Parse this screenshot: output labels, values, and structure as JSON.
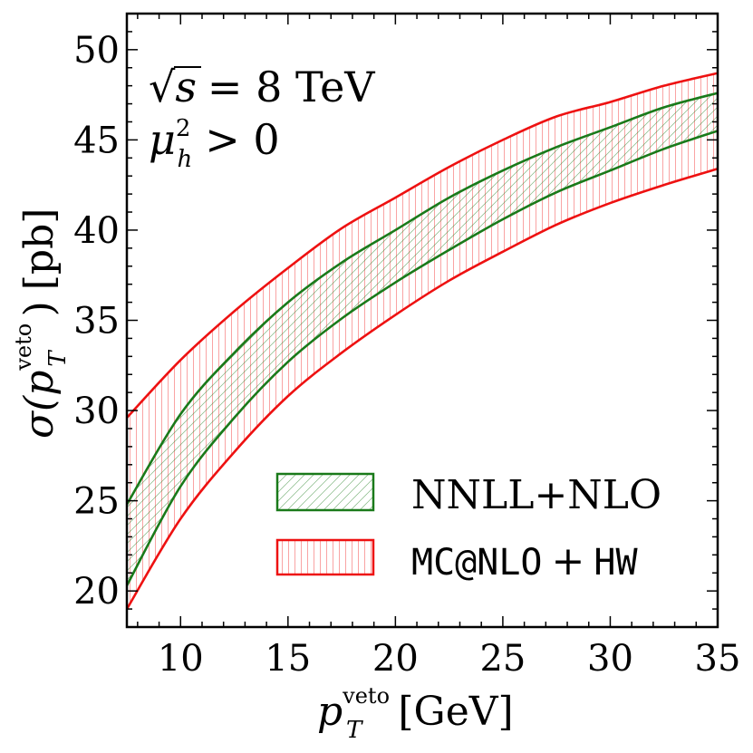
{
  "chart_data": {
    "type": "area",
    "x_axis": {
      "label": "p",
      "label_sup": "veto",
      "label_sub": "T",
      "label_unit": "[GeV]",
      "range": [
        7.5,
        35
      ],
      "ticks": [
        10,
        15,
        20,
        25,
        30,
        35
      ],
      "tick_labels": [
        "10",
        "15",
        "20",
        "25",
        "30",
        "35"
      ]
    },
    "y_axis": {
      "label_sigma": "σ(",
      "label_p": "p",
      "label_sup": "veto",
      "label_sub": "T",
      "label_close": ")",
      "label_unit": "[pb]",
      "range": [
        18,
        52
      ],
      "ticks": [
        20,
        25,
        30,
        35,
        40,
        45,
        50
      ],
      "tick_labels": [
        "20",
        "25",
        "30",
        "35",
        "40",
        "45",
        "50"
      ]
    },
    "annotations": {
      "energy_sqrt": "√",
      "energy_s": "s",
      "energy_rest": "= 8 TeV",
      "mu_base": "μ",
      "mu_sup": "2",
      "mu_sub": "h",
      "mu_rest": "> 0"
    },
    "series": [
      {
        "name": "NNLL+NLO",
        "color": "#1a7a1a",
        "hatch": "diagonal",
        "x": [
          7.5,
          10,
          12.5,
          15,
          17.5,
          20,
          22.5,
          25,
          27.5,
          30,
          32.5,
          35
        ],
        "upper": [
          24.8,
          29.8,
          33.2,
          36.0,
          38.2,
          40.0,
          41.8,
          43.3,
          44.6,
          45.7,
          46.8,
          47.6
        ],
        "lower": [
          20.3,
          25.8,
          29.6,
          32.7,
          35.1,
          37.1,
          38.9,
          40.6,
          42.1,
          43.3,
          44.5,
          45.5
        ]
      },
      {
        "name": "MC@NLO + HW",
        "label_left": "MC@NLO",
        "label_op": "+",
        "label_right": "HW",
        "color": "#ee1111",
        "hatch": "vertical",
        "x": [
          7.5,
          10,
          12.5,
          15,
          17.5,
          20,
          22.5,
          25,
          27.5,
          30,
          32.5,
          35
        ],
        "upper": [
          29.6,
          32.8,
          35.5,
          37.9,
          40.1,
          41.8,
          43.5,
          45.0,
          46.3,
          47.1,
          48.0,
          48.7
        ],
        "lower": [
          19.0,
          24.0,
          27.7,
          30.8,
          33.2,
          35.3,
          37.2,
          38.8,
          40.3,
          41.5,
          42.5,
          43.4
        ]
      }
    ],
    "legend": {
      "position": "lower-right"
    }
  }
}
